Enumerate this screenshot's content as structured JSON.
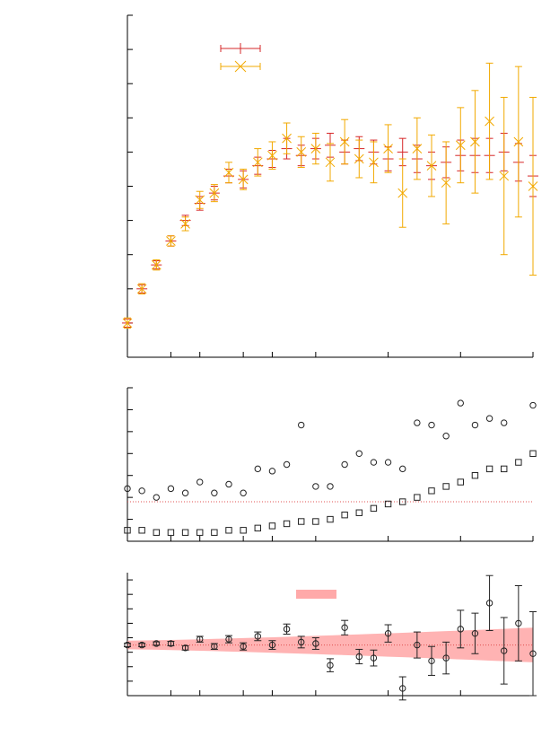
{
  "colors": {
    "red": "#d62728",
    "orange": "#f2a900",
    "black": "#222222",
    "band": "#ff9a9a",
    "refline": "#e05050"
  },
  "chart_data": [
    {
      "type": "scatter",
      "panel": "top",
      "xlim": [
        0,
        28
      ],
      "ylim": [
        0,
        10
      ],
      "xticks": [
        0,
        3,
        5,
        8,
        10,
        13,
        18,
        23,
        28
      ],
      "yticks": [
        0,
        1,
        2,
        3,
        4,
        5,
        6,
        7,
        8,
        9,
        10
      ],
      "legend": {
        "placement": "top-left",
        "entries": []
      },
      "series": [
        {
          "marker": "plus",
          "color": "red",
          "x": [
            0,
            1,
            2,
            3,
            4,
            5,
            6,
            7,
            8,
            9,
            10,
            11,
            12,
            13,
            14,
            15,
            16,
            17,
            18,
            19,
            20,
            21,
            22,
            23,
            24,
            25,
            26,
            27,
            28
          ],
          "y": [
            1.0,
            2.0,
            2.7,
            3.4,
            4.0,
            4.5,
            4.8,
            5.3,
            5.2,
            5.6,
            5.8,
            6.1,
            5.9,
            6.1,
            6.2,
            6.0,
            6.1,
            6.0,
            5.8,
            6.0,
            5.8,
            5.6,
            5.7,
            5.9,
            5.9,
            5.9,
            6.0,
            5.7,
            5.3
          ],
          "err": [
            0.12,
            0.12,
            0.12,
            0.15,
            0.15,
            0.2,
            0.2,
            0.2,
            0.25,
            0.25,
            0.25,
            0.3,
            0.3,
            0.3,
            0.35,
            0.35,
            0.35,
            0.35,
            0.35,
            0.4,
            0.4,
            0.4,
            0.45,
            0.45,
            0.5,
            0.5,
            0.55,
            0.55,
            0.6
          ]
        },
        {
          "marker": "cross",
          "color": "orange",
          "x": [
            0,
            1,
            2,
            3,
            4,
            5,
            6,
            7,
            8,
            9,
            10,
            11,
            12,
            13,
            14,
            15,
            16,
            17,
            18,
            19,
            20,
            21,
            22,
            23,
            24,
            25,
            26,
            27,
            28
          ],
          "y": [
            1.0,
            2.0,
            2.7,
            3.4,
            3.9,
            4.6,
            4.8,
            5.4,
            5.2,
            5.7,
            5.9,
            6.4,
            6.0,
            6.1,
            5.7,
            6.3,
            5.8,
            5.7,
            6.1,
            4.8,
            6.1,
            5.6,
            5.1,
            6.2,
            6.3,
            6.9,
            5.3,
            6.3,
            5.0
          ],
          "err": [
            0.15,
            0.15,
            0.15,
            0.15,
            0.2,
            0.25,
            0.25,
            0.3,
            0.3,
            0.4,
            0.4,
            0.45,
            0.45,
            0.45,
            0.55,
            0.65,
            0.55,
            0.6,
            0.7,
            1.0,
            0.9,
            0.9,
            1.2,
            1.1,
            1.5,
            1.7,
            2.3,
            2.2,
            2.6
          ]
        }
      ]
    },
    {
      "type": "scatter",
      "panel": "middle",
      "xlim": [
        0,
        28
      ],
      "ylim": [
        0,
        7
      ],
      "xticks": [
        0,
        3,
        5,
        8,
        10,
        13,
        18,
        23,
        28
      ],
      "yticks": [
        0,
        1,
        2,
        3,
        4,
        5,
        6,
        7
      ],
      "reference_line": 1.8,
      "series": [
        {
          "marker": "circle",
          "color": "black",
          "x": [
            0,
            1,
            2,
            3,
            4,
            5,
            6,
            7,
            8,
            9,
            10,
            11,
            12,
            13,
            14,
            15,
            16,
            17,
            18,
            19,
            20,
            21,
            22,
            23,
            24,
            25,
            26,
            27,
            28
          ],
          "y": [
            2.4,
            2.3,
            2.0,
            2.4,
            2.2,
            2.7,
            2.2,
            2.6,
            2.2,
            3.3,
            3.2,
            3.5,
            5.3,
            2.5,
            2.5,
            3.5,
            4.0,
            3.6,
            3.6,
            3.3,
            5.4,
            5.3,
            4.8,
            6.3,
            5.3,
            5.6,
            5.4,
            0.0,
            6.2
          ],
          "exclude_last_zero": true
        },
        {
          "marker": "square",
          "color": "black",
          "x": [
            0,
            1,
            2,
            3,
            4,
            5,
            6,
            7,
            8,
            9,
            10,
            11,
            12,
            13,
            14,
            15,
            16,
            17,
            18,
            19,
            20,
            21,
            22,
            23,
            24,
            25,
            26,
            27,
            28
          ],
          "y": [
            0.5,
            0.5,
            0.4,
            0.4,
            0.4,
            0.4,
            0.4,
            0.5,
            0.5,
            0.6,
            0.7,
            0.8,
            0.9,
            0.9,
            1.0,
            1.2,
            1.3,
            1.5,
            1.7,
            1.8,
            2.0,
            2.3,
            2.5,
            2.7,
            3.0,
            3.3,
            3.3,
            3.6,
            4.0
          ]
        }
      ]
    },
    {
      "type": "scatter",
      "panel": "bottom",
      "xlim": [
        0,
        28
      ],
      "ylim": [
        -3.5,
        5.0
      ],
      "xticks": [
        0,
        3,
        5,
        8,
        10,
        13,
        18,
        23,
        28
      ],
      "yticks": [
        -3.5,
        -2.5,
        -1.5,
        -0.5,
        0.5,
        1.5,
        2.5,
        3.5,
        4.5
      ],
      "reference_line": 0,
      "band": {
        "lower": -0.3,
        "upper": 0.3,
        "widen_to": 1.2
      },
      "legend": {
        "placement": "top-center",
        "entries": []
      },
      "series": [
        {
          "marker": "circle",
          "color": "black",
          "x": [
            0,
            1,
            2,
            3,
            4,
            5,
            6,
            7,
            8,
            9,
            10,
            11,
            12,
            13,
            14,
            15,
            16,
            17,
            18,
            19,
            20,
            21,
            22,
            23,
            24,
            25,
            26,
            27,
            28
          ],
          "y": [
            0.0,
            0.0,
            0.1,
            0.1,
            -0.2,
            0.4,
            -0.1,
            0.4,
            -0.1,
            0.6,
            0.0,
            1.1,
            0.2,
            0.1,
            -1.4,
            1.2,
            -0.8,
            -0.9,
            0.8,
            -3.0,
            0.0,
            -1.1,
            -0.9,
            1.1,
            0.8,
            2.9,
            -0.4,
            1.5,
            -0.6
          ],
          "err": [
            0.12,
            0.12,
            0.12,
            0.15,
            0.15,
            0.2,
            0.2,
            0.25,
            0.25,
            0.3,
            0.3,
            0.35,
            0.4,
            0.4,
            0.45,
            0.5,
            0.5,
            0.55,
            0.6,
            0.8,
            0.9,
            1.0,
            1.1,
            1.3,
            1.4,
            1.9,
            2.3,
            2.6,
            2.9
          ]
        }
      ]
    }
  ]
}
